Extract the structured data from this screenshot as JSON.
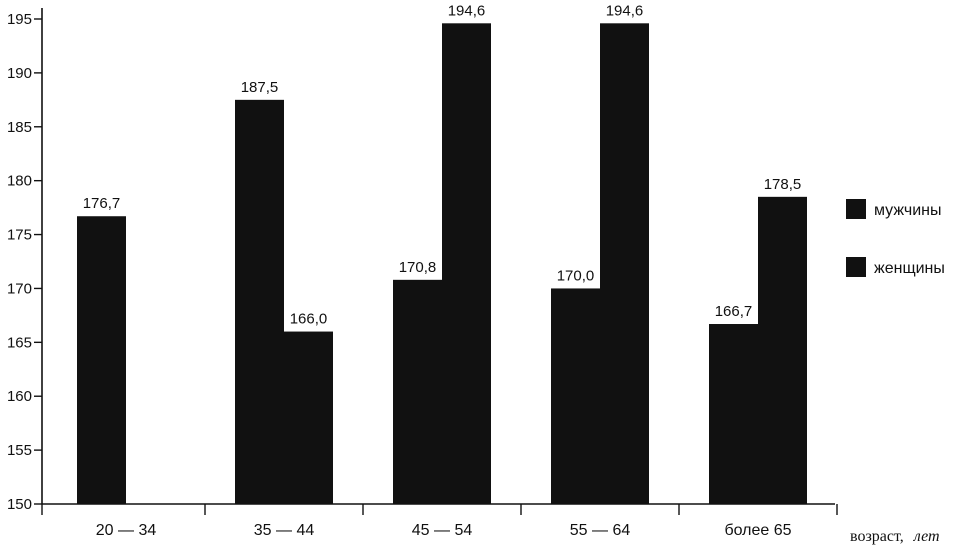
{
  "chart_data": {
    "type": "bar",
    "categories": [
      "20 — 34",
      "35 — 44",
      "45 — 54",
      "55 — 64",
      "более 65"
    ],
    "series": [
      {
        "name": "мужчины",
        "values": [
          176.7,
          187.5,
          170.8,
          170.0,
          166.7
        ],
        "labels": [
          "176,7",
          "187,5",
          "170,8",
          "170,0",
          "166,7"
        ]
      },
      {
        "name": "женщины",
        "values": [
          null,
          166.0,
          194.6,
          194.6,
          178.5
        ],
        "labels": [
          "",
          "166,0",
          "194,6",
          "194,6",
          "178,5"
        ]
      }
    ],
    "ylim": [
      150,
      196
    ],
    "yticks": [
      150,
      155,
      160,
      165,
      170,
      175,
      180,
      185,
      190,
      195
    ],
    "xlabel": "возраст,",
    "xlabel_unit": "лет",
    "ylabel": "",
    "bar_color": "#111111",
    "legend_position": "right"
  }
}
